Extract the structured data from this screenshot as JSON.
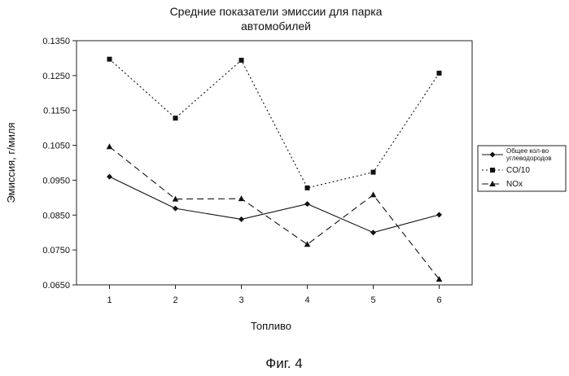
{
  "chart_data": {
    "type": "line",
    "title_line1": "Средние показатели эмиссии для парка",
    "title_line2": "автомобилей",
    "xlabel": "Топливо",
    "ylabel": "Эмиссия, г/миля",
    "x": [
      1,
      2,
      3,
      4,
      5,
      6
    ],
    "x_tick_labels": [
      "1",
      "2",
      "3",
      "4",
      "5",
      "6"
    ],
    "ylim": [
      0.065,
      0.135
    ],
    "y_ticks": [
      0.065,
      0.075,
      0.085,
      0.095,
      0.105,
      0.115,
      0.125,
      0.135
    ],
    "y_tick_labels": [
      "0.0650",
      "0.0750",
      "0.0850",
      "0.0950",
      "0.1050",
      "0.1150",
      "0.1250",
      "0.1350"
    ],
    "grid": false,
    "legend_position": "right",
    "series": [
      {
        "name_line1": "Общее кол-во",
        "name_line2": "углеводородов",
        "values": [
          0.096,
          0.0869,
          0.0838,
          0.0882,
          0.08,
          0.0851
        ],
        "marker": "diamond",
        "dash": "solid",
        "color": "#111111"
      },
      {
        "name": "CO/10",
        "values": [
          0.1297,
          0.1128,
          0.1294,
          0.0928,
          0.0973,
          0.1257
        ],
        "marker": "square",
        "dash": "dotted",
        "color": "#111111"
      },
      {
        "name": "NOx",
        "values": [
          0.1046,
          0.0896,
          0.0897,
          0.0766,
          0.0908,
          0.0666
        ],
        "marker": "triangle",
        "dash": "dashed",
        "color": "#111111"
      }
    ]
  },
  "caption": "Фиг. 4"
}
